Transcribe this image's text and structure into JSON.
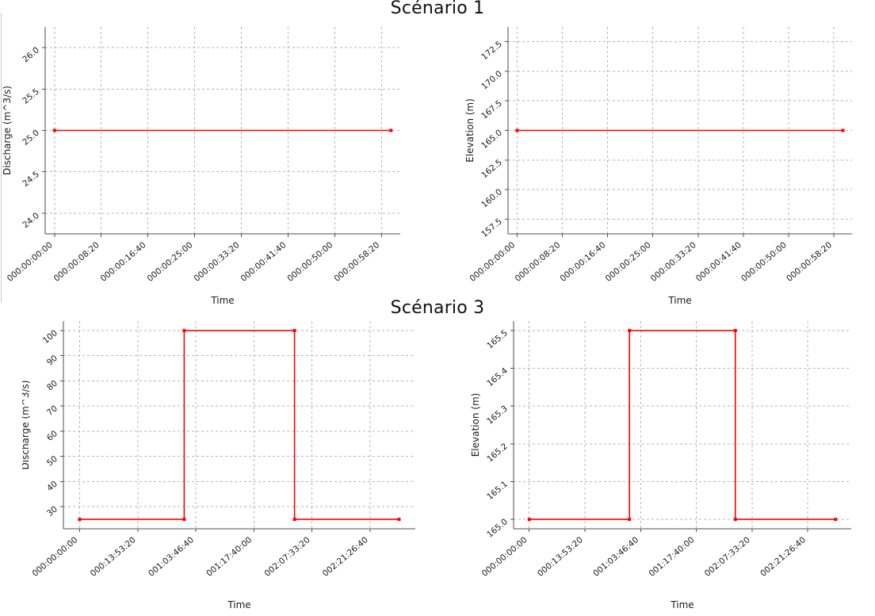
{
  "page": {
    "background": "#ffffff",
    "accent_line_color": "#ff0000",
    "grid_color": "#b5b5b5"
  },
  "titles": [
    {
      "id": "scenario1",
      "text": "Scénario 1"
    },
    {
      "id": "scenario3",
      "text": "Scénario 3"
    }
  ],
  "chart_data": [
    {
      "id": "scenario1-discharge",
      "type": "line",
      "title": "Scénario 1",
      "xlabel": "Time",
      "ylabel": "Discharge (m^3/s)",
      "grid": true,
      "legend": false,
      "xlim": [
        -100,
        3700
      ],
      "ylim": [
        23.75,
        26.25
      ],
      "x_ticks": [
        {
          "value": 0,
          "label": "000:00:00:00"
        },
        {
          "value": 500,
          "label": "000:00:08:20"
        },
        {
          "value": 1000,
          "label": "000:00:16:40"
        },
        {
          "value": 1500,
          "label": "000:00:25:00"
        },
        {
          "value": 2000,
          "label": "000:00:33:20"
        },
        {
          "value": 2500,
          "label": "000:00:41:40"
        },
        {
          "value": 3000,
          "label": "000:00:50:00"
        },
        {
          "value": 3500,
          "label": "000:00:58:20"
        }
      ],
      "y_ticks": [
        {
          "value": 24.0,
          "label": "24.0"
        },
        {
          "value": 24.5,
          "label": "24.5"
        },
        {
          "value": 25.0,
          "label": "25.0"
        },
        {
          "value": 25.5,
          "label": "25.5"
        },
        {
          "value": 26.0,
          "label": "26.0"
        }
      ],
      "series": [
        {
          "name": "Discharge",
          "color": "#ff0000",
          "points": [
            [
              0,
              25.0
            ],
            [
              3600,
              25.0
            ]
          ]
        }
      ]
    },
    {
      "id": "scenario1-elevation",
      "type": "line",
      "title": "Scénario 1",
      "xlabel": "Time",
      "ylabel": "Elevation (m)",
      "grid": true,
      "legend": false,
      "xlim": [
        -100,
        3700
      ],
      "ylim": [
        156.25,
        173.75
      ],
      "x_ticks": [
        {
          "value": 0,
          "label": "000:00:00:00"
        },
        {
          "value": 500,
          "label": "000:00:08:20"
        },
        {
          "value": 1000,
          "label": "000:00:16:40"
        },
        {
          "value": 1500,
          "label": "000:00:25:00"
        },
        {
          "value": 2000,
          "label": "000:00:33:20"
        },
        {
          "value": 2500,
          "label": "000:00:41:40"
        },
        {
          "value": 3000,
          "label": "000:00:50:00"
        },
        {
          "value": 3500,
          "label": "000:00:58:20"
        }
      ],
      "y_ticks": [
        {
          "value": 157.5,
          "label": "157.5"
        },
        {
          "value": 160.0,
          "label": "160.0"
        },
        {
          "value": 162.5,
          "label": "162.5"
        },
        {
          "value": 165.0,
          "label": "165.0"
        },
        {
          "value": 167.5,
          "label": "167.5"
        },
        {
          "value": 170.0,
          "label": "170.0"
        },
        {
          "value": 172.5,
          "label": "172.5"
        }
      ],
      "series": [
        {
          "name": "Elevation",
          "color": "#ff0000",
          "points": [
            [
              0,
              165.0
            ],
            [
              3600,
              165.0
            ]
          ]
        }
      ]
    },
    {
      "id": "scenario3-discharge",
      "type": "line",
      "title": "Scénario 3",
      "xlabel": "Time",
      "ylabel": "Discharge (m^3/s)",
      "grid": true,
      "legend": false,
      "xlim": [
        -14000,
        289000
      ],
      "ylim": [
        21.25,
        103.75
      ],
      "x_ticks": [
        {
          "value": 0,
          "label": "000:00:00:00"
        },
        {
          "value": 50000,
          "label": "000:13:53:20"
        },
        {
          "value": 100000,
          "label": "001:03:46:40"
        },
        {
          "value": 150000,
          "label": "001:17:40:00"
        },
        {
          "value": 200000,
          "label": "002:07:33:20"
        },
        {
          "value": 250000,
          "label": "002:21:26:40"
        }
      ],
      "y_ticks": [
        {
          "value": 30,
          "label": "30"
        },
        {
          "value": 40,
          "label": "40"
        },
        {
          "value": 50,
          "label": "50"
        },
        {
          "value": 60,
          "label": "60"
        },
        {
          "value": 70,
          "label": "70"
        },
        {
          "value": 80,
          "label": "80"
        },
        {
          "value": 90,
          "label": "90"
        },
        {
          "value": 100,
          "label": "100"
        }
      ],
      "series": [
        {
          "name": "Discharge",
          "color": "#ff0000",
          "points": [
            [
              0,
              25
            ],
            [
              90000,
              25
            ],
            [
              90000,
              100
            ],
            [
              185000,
              100
            ],
            [
              185000,
              25
            ],
            [
              275000,
              25
            ]
          ]
        }
      ]
    },
    {
      "id": "scenario3-elevation",
      "type": "line",
      "title": "Scénario 3",
      "xlabel": "Time",
      "ylabel": "Elevation (m)",
      "grid": true,
      "legend": false,
      "xlim": [
        -14000,
        289000
      ],
      "ylim": [
        164.975,
        165.525
      ],
      "x_ticks": [
        {
          "value": 0,
          "label": "000:00:00:00"
        },
        {
          "value": 50000,
          "label": "000:13:53:20"
        },
        {
          "value": 100000,
          "label": "001:03:46:40"
        },
        {
          "value": 150000,
          "label": "001:17:40:00"
        },
        {
          "value": 200000,
          "label": "002:07:33:20"
        },
        {
          "value": 250000,
          "label": "002:21:26:40"
        }
      ],
      "y_ticks": [
        {
          "value": 165.0,
          "label": "165.0"
        },
        {
          "value": 165.1,
          "label": "165.1"
        },
        {
          "value": 165.2,
          "label": "165.2"
        },
        {
          "value": 165.3,
          "label": "165.3"
        },
        {
          "value": 165.4,
          "label": "165.4"
        },
        {
          "value": 165.5,
          "label": "165.5"
        }
      ],
      "series": [
        {
          "name": "Elevation",
          "color": "#ff0000",
          "points": [
            [
              0,
              165.0
            ],
            [
              90000,
              165.0
            ],
            [
              90000,
              165.5
            ],
            [
              185000,
              165.5
            ],
            [
              185000,
              165.0
            ],
            [
              275000,
              165.0
            ]
          ]
        }
      ]
    }
  ]
}
